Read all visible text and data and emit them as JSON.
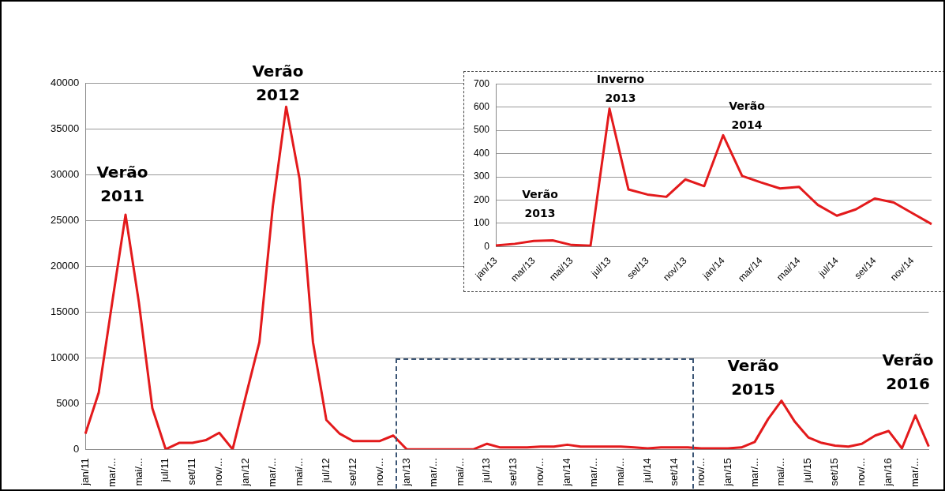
{
  "chart_data": [
    {
      "type": "line",
      "marker": "none",
      "grid": "y",
      "categories": [
        "jan/11",
        null,
        "mar/...",
        null,
        "mai/...",
        null,
        "jul/11",
        null,
        "set/11",
        null,
        "nov/...",
        null,
        "jan/12",
        null,
        "mar/...",
        null,
        "mai/...",
        null,
        "jul/12",
        null,
        "set/12",
        null,
        "nov/...",
        null,
        "jan/13",
        null,
        "mar/...",
        null,
        "mai/...",
        null,
        "jul/13",
        null,
        "set/13",
        null,
        "nov/...",
        null,
        "jan/14",
        null,
        "mar/...",
        null,
        "mai/...",
        null,
        "jul/14",
        null,
        "set/14",
        null,
        "nov/...",
        null,
        "jan/15",
        null,
        "mar/...",
        null,
        "mai/...",
        null,
        "jul/15",
        null,
        "set/15",
        null,
        "nov/...",
        null,
        "jan/16",
        null,
        "mar/...",
        null
      ],
      "series": [
        {
          "color": "#e31a1c",
          "values": [
            1700,
            6200,
            16000,
            25600,
            16000,
            4500,
            0,
            700,
            700,
            1000,
            1800,
            0,
            5900,
            11700,
            26500,
            37400,
            29500,
            11700,
            3200,
            1700,
            900,
            900,
            900,
            1500,
            0,
            0,
            0,
            0,
            0,
            0,
            600,
            200,
            200,
            200,
            300,
            300,
            500,
            300,
            300,
            300,
            300,
            200,
            100,
            200,
            200,
            200,
            100,
            100,
            100,
            200,
            800,
            3300,
            5300,
            3000,
            1300,
            700,
            400,
            300,
            600,
            1500,
            2000,
            100,
            3700,
            300
          ]
        }
      ],
      "ylim": [
        0,
        40000
      ],
      "yticks": [
        0,
        5000,
        10000,
        15000,
        20000,
        25000,
        30000,
        35000,
        40000
      ],
      "annotations": [
        "Verão 2011",
        "Verão 2012",
        "Verão 2015",
        "Verão 2016"
      ]
    },
    {
      "type": "line",
      "marker": "none",
      "grid": "y",
      "categories": [
        "jan/13",
        null,
        "mar/13",
        null,
        "mai/13",
        null,
        "jul/13",
        null,
        "set/13",
        null,
        "nov/13",
        null,
        "jan/14",
        null,
        "mar/14",
        null,
        "mai/14",
        null,
        "jul/14",
        null,
        "set/14",
        null,
        "nov/14",
        null
      ],
      "series": [
        {
          "color": "#e31a1c",
          "values": [
            5,
            12,
            24,
            27,
            7,
            4,
            593,
            246,
            224,
            214,
            289,
            260,
            479,
            304,
            276,
            250,
            257,
            179,
            133,
            160,
            207,
            190,
            143,
            97
          ]
        }
      ],
      "ylim": [
        0,
        700
      ],
      "yticks": [
        0,
        100,
        200,
        300,
        400,
        500,
        600,
        700
      ],
      "annotations": [
        "Inverno 2013",
        "Verão 2014",
        "Verão 2013"
      ]
    }
  ]
}
